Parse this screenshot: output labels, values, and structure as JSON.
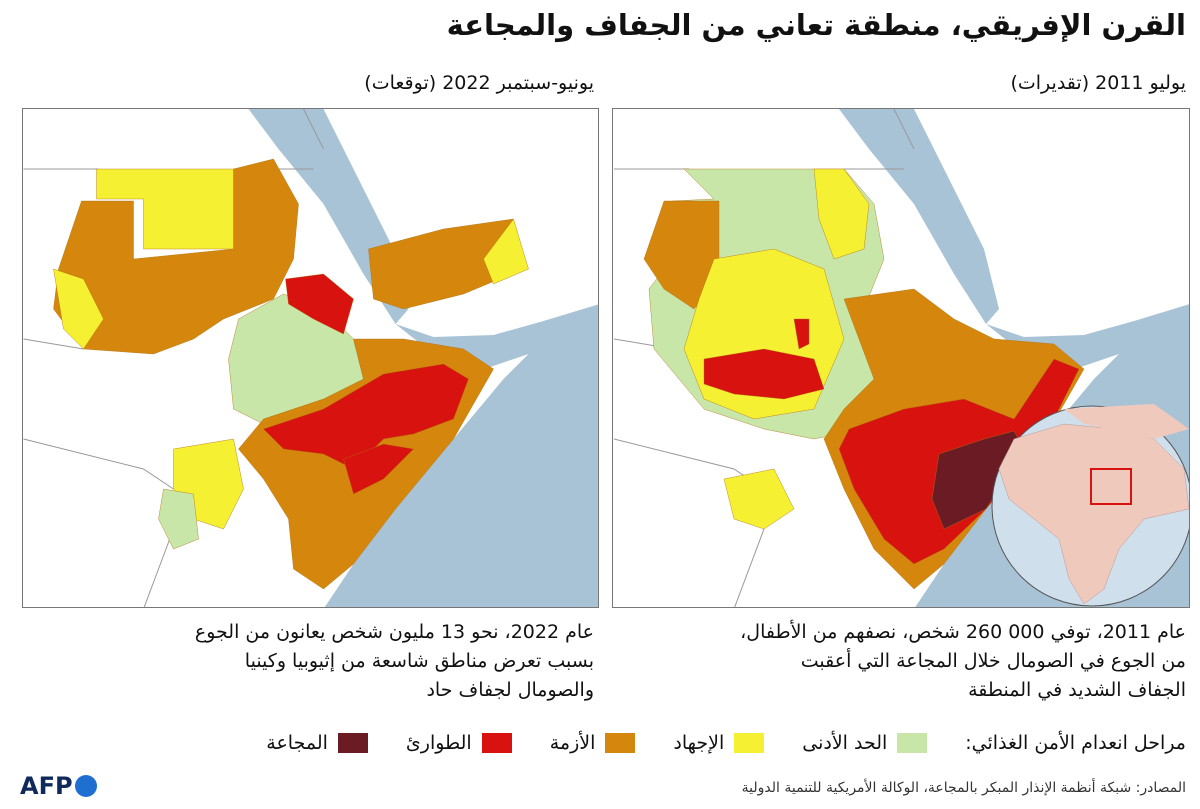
{
  "title": "القرن الإفريقي، منطقة تعاني من الجفاف والمجاعة",
  "maps": [
    {
      "label": "يونيو-سبتمبر 2022 (توقعات)",
      "caption": [
        "عام 2022، نحو 13 مليون شخص يعانون من الجوع",
        "بسبب تعرض مناطق شاسعة من إثيوبيا وكينيا",
        "والصومال لجفاف حاد"
      ]
    },
    {
      "label": "يوليو 2011 (تقديرات)",
      "caption": [
        "عام 2011، توفي 000 260 شخص، نصفهم من الأطفال،",
        "من الجوع في الصومال خلال المجاعة التي أعقبت",
        "الجفاف الشديد في المنطقة"
      ]
    }
  ],
  "legend": {
    "title": "مراحل انعدام الأمن الغذائي:",
    "items": [
      {
        "label": "الحد الأدنى",
        "color": "#c9e6a9"
      },
      {
        "label": "الإجهاد",
        "color": "#f6f033"
      },
      {
        "label": "الأزمة",
        "color": "#d4870c"
      },
      {
        "label": "الطوارئ",
        "color": "#d8120f"
      },
      {
        "label": "المجاعة",
        "color": "#6a1b24"
      }
    ]
  },
  "sources": "المصادر: شبكة أنظمة الإنذار المبكر بالمجاعة، الوكالة الأمريكية للتنمية الدولية",
  "logo": "AFP"
}
